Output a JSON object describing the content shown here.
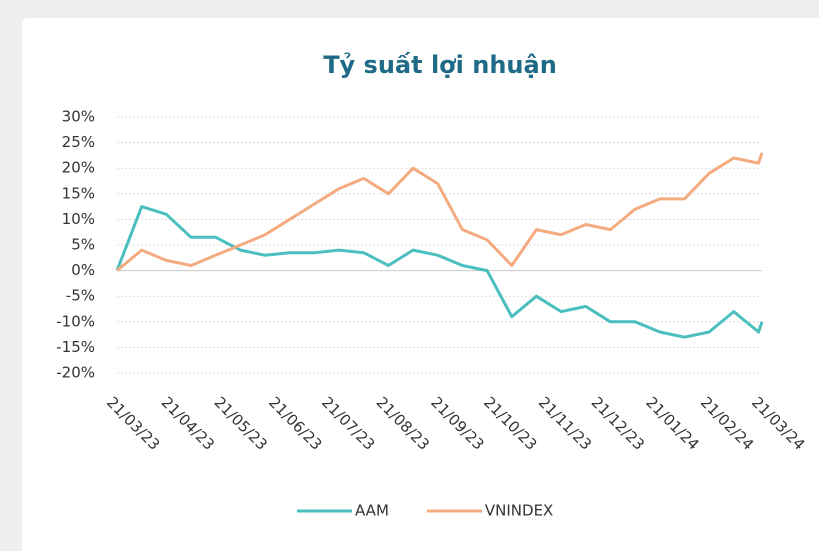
{
  "chart_data": {
    "type": "line",
    "title": "Tỷ suất lợi nhuận",
    "x": [
      "2023-03-21",
      "2023-04-04",
      "2023-04-18",
      "2023-05-02",
      "2023-05-16",
      "2023-05-30",
      "2023-06-13",
      "2023-06-27",
      "2023-07-11",
      "2023-07-25",
      "2023-08-08",
      "2023-08-22",
      "2023-09-05",
      "2023-09-19",
      "2023-10-03",
      "2023-10-17",
      "2023-10-31",
      "2023-11-14",
      "2023-11-28",
      "2023-12-12",
      "2023-12-26",
      "2024-01-09",
      "2024-01-23",
      "2024-02-06",
      "2024-02-20",
      "2024-03-05",
      "2024-03-19",
      "2024-03-21"
    ],
    "series": [
      {
        "name": "AAM",
        "color": "#4bbfbf",
        "values": [
          0,
          12.5,
          11,
          6.5,
          6.5,
          4,
          3,
          3.5,
          3.5,
          4,
          3.5,
          1,
          4,
          3,
          1,
          0,
          -9,
          -5,
          -8,
          -7,
          -10,
          -10,
          -12,
          -13,
          -12,
          -8,
          -12,
          -10
        ]
      },
      {
        "name": "VNINDEX",
        "color": "#f5ab80",
        "values": [
          0,
          4,
          2,
          1,
          3,
          5,
          7,
          10,
          13,
          16,
          18,
          15,
          20,
          17,
          8,
          6,
          1,
          8,
          7,
          9,
          8,
          12,
          14,
          14,
          19,
          22,
          21,
          23
        ]
      }
    ],
    "xlim": [
      "2023-03-21",
      "2024-03-21"
    ],
    "xticks": [
      {
        "value": "2023-03-21",
        "label": "21/03/23"
      },
      {
        "value": "2023-04-21",
        "label": "21/04/23"
      },
      {
        "value": "2023-05-21",
        "label": "21/05/23"
      },
      {
        "value": "2023-06-21",
        "label": "21/06/23"
      },
      {
        "value": "2023-07-21",
        "label": "21/07/23"
      },
      {
        "value": "2023-08-21",
        "label": "21/08/23"
      },
      {
        "value": "2023-09-21",
        "label": "21/09/23"
      },
      {
        "value": "2023-10-21",
        "label": "21/10/23"
      },
      {
        "value": "2023-11-21",
        "label": "21/11/23"
      },
      {
        "value": "2023-12-21",
        "label": "21/12/23"
      },
      {
        "value": "2024-01-21",
        "label": "21/01/24"
      },
      {
        "value": "2024-02-21",
        "label": "21/02/24"
      },
      {
        "value": "2024-03-21",
        "label": "21/03/24"
      }
    ],
    "ylim": [
      -20,
      30
    ],
    "yticks": [
      {
        "value": -20,
        "label": "-20%"
      },
      {
        "value": -15,
        "label": "-15%"
      },
      {
        "value": -10,
        "label": "-10%"
      },
      {
        "value": -5,
        "label": "-5%"
      },
      {
        "value": 0,
        "label": "0%"
      },
      {
        "value": 5,
        "label": "5%"
      },
      {
        "value": 10,
        "label": "10%"
      },
      {
        "value": 15,
        "label": "15%"
      },
      {
        "value": 20,
        "label": "20%"
      },
      {
        "value": 25,
        "label": "25%"
      },
      {
        "value": 30,
        "label": "30%"
      }
    ],
    "grid": true,
    "legend": "bottom"
  }
}
